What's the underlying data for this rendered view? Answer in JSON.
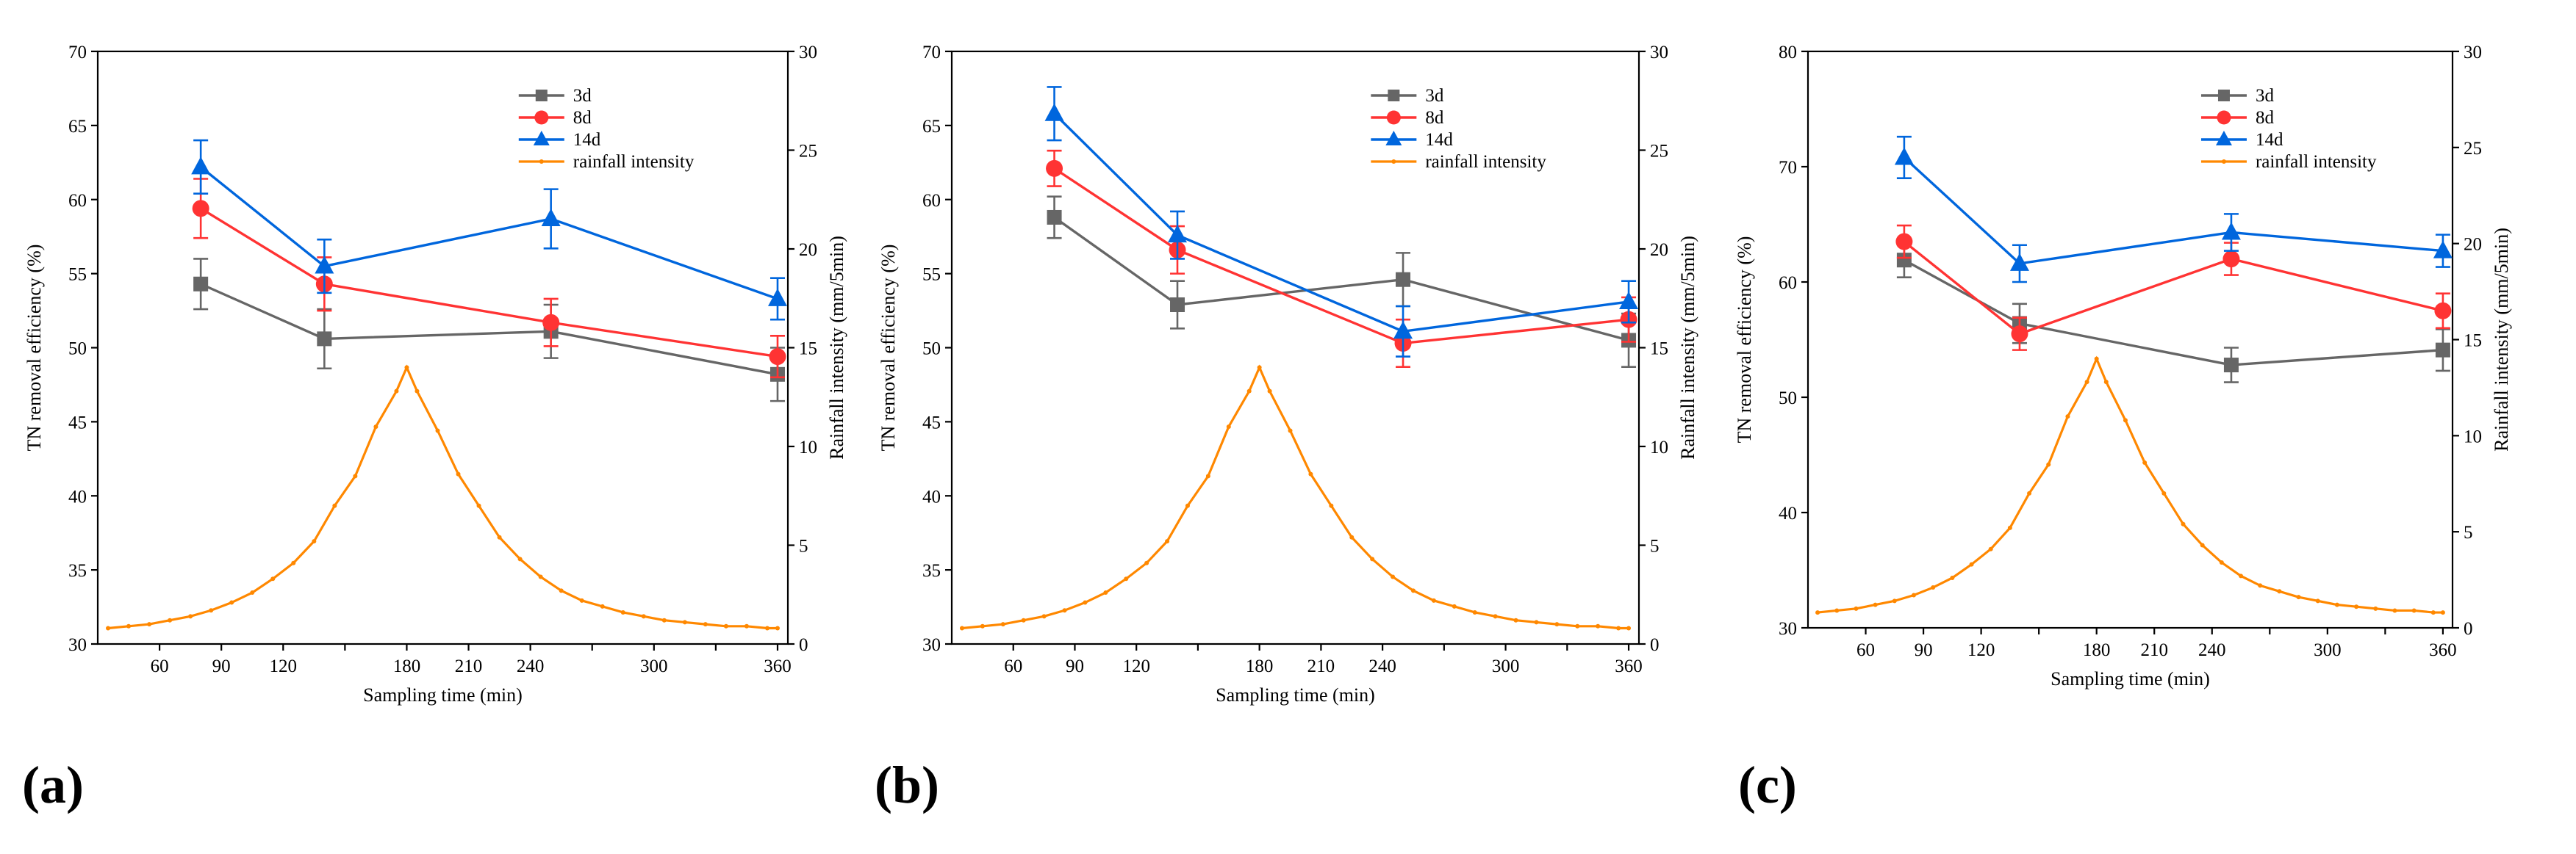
{
  "chart_data": [
    {
      "type": "line",
      "panel_label": "(a)",
      "xlabel": "Sampling time (min)",
      "ylabel": "TN removal efficiency (%)",
      "y2label": "Rainfall intensity (mm/5min)",
      "xlim": [
        30,
        365
      ],
      "ylim": [
        30,
        70
      ],
      "y2lim": [
        0,
        30
      ],
      "xticks": [
        60,
        90,
        120,
        150,
        180,
        210,
        240,
        270,
        300,
        330,
        360
      ],
      "xtick_labels": [
        "60",
        "90",
        "120",
        "",
        "180",
        "210",
        "240",
        "",
        "300",
        "",
        "360"
      ],
      "yticks": [
        30,
        35,
        40,
        45,
        50,
        55,
        60,
        65,
        70
      ],
      "y2ticks": [
        0,
        5,
        10,
        15,
        20,
        25,
        30
      ],
      "legend_position": "top-right",
      "series": [
        {
          "name": "3d",
          "color": "#666666",
          "marker": "square",
          "x": [
            80,
            140,
            250,
            360
          ],
          "y": [
            54.3,
            50.6,
            51.1,
            48.2
          ],
          "err": [
            1.7,
            2.0,
            1.8,
            1.8
          ]
        },
        {
          "name": "8d",
          "color": "#ff3333",
          "marker": "circle",
          "x": [
            80,
            140,
            250,
            360
          ],
          "y": [
            59.4,
            54.3,
            51.7,
            49.4
          ],
          "err": [
            2.0,
            1.8,
            1.6,
            1.4
          ]
        },
        {
          "name": "14d",
          "color": "#0066dd",
          "marker": "triangle",
          "x": [
            80,
            140,
            250,
            360
          ],
          "y": [
            62.2,
            55.5,
            58.7,
            53.3
          ],
          "err": [
            1.8,
            1.8,
            2.0,
            1.4
          ]
        }
      ],
      "rainfall": {
        "name": "rainfall intensity",
        "color": "#ff8800",
        "x": [
          35,
          45,
          55,
          65,
          75,
          85,
          95,
          105,
          115,
          125,
          135,
          145,
          155,
          165,
          175,
          180,
          185,
          195,
          205,
          215,
          225,
          235,
          245,
          255,
          265,
          275,
          285,
          295,
          305,
          315,
          325,
          335,
          345,
          355,
          360
        ],
        "y": [
          0.8,
          0.9,
          1.0,
          1.2,
          1.4,
          1.7,
          2.1,
          2.6,
          3.3,
          4.1,
          5.2,
          7.0,
          8.5,
          11.0,
          12.8,
          14.0,
          12.8,
          10.8,
          8.6,
          7.0,
          5.4,
          4.3,
          3.4,
          2.7,
          2.2,
          1.9,
          1.6,
          1.4,
          1.2,
          1.1,
          1.0,
          0.9,
          0.9,
          0.8,
          0.8
        ]
      }
    },
    {
      "type": "line",
      "panel_label": "(b)",
      "xlabel": "Sampling time (min)",
      "ylabel": "TN removal efficiency (%)",
      "y2label": "Rainfall intensity (mm/5min)",
      "xlim": [
        30,
        365
      ],
      "ylim": [
        30,
        70
      ],
      "y2lim": [
        0,
        30
      ],
      "xticks": [
        60,
        90,
        120,
        150,
        180,
        210,
        240,
        270,
        300,
        330,
        360
      ],
      "xtick_labels": [
        "60",
        "90",
        "120",
        "",
        "180",
        "210",
        "240",
        "",
        "300",
        "",
        "360"
      ],
      "yticks": [
        30,
        35,
        40,
        45,
        50,
        55,
        60,
        65,
        70
      ],
      "y2ticks": [
        0,
        5,
        10,
        15,
        20,
        25,
        30
      ],
      "legend_position": "top-right",
      "series": [
        {
          "name": "3d",
          "color": "#666666",
          "marker": "square",
          "x": [
            80,
            140,
            250,
            360
          ],
          "y": [
            58.8,
            52.9,
            54.6,
            50.5
          ],
          "err": [
            1.4,
            1.6,
            1.8,
            1.8
          ]
        },
        {
          "name": "8d",
          "color": "#ff3333",
          "marker": "circle",
          "x": [
            80,
            140,
            250,
            360
          ],
          "y": [
            62.1,
            56.6,
            50.3,
            51.9
          ],
          "err": [
            1.2,
            1.6,
            1.6,
            1.5
          ]
        },
        {
          "name": "14d",
          "color": "#0066dd",
          "marker": "triangle",
          "x": [
            80,
            140,
            250,
            360
          ],
          "y": [
            65.8,
            57.6,
            51.1,
            53.1
          ],
          "err": [
            1.8,
            1.6,
            1.7,
            1.4
          ]
        }
      ],
      "rainfall": {
        "name": "rainfall intensity",
        "color": "#ff8800",
        "x": [
          35,
          45,
          55,
          65,
          75,
          85,
          95,
          105,
          115,
          125,
          135,
          145,
          155,
          165,
          175,
          180,
          185,
          195,
          205,
          215,
          225,
          235,
          245,
          255,
          265,
          275,
          285,
          295,
          305,
          315,
          325,
          335,
          345,
          355,
          360
        ],
        "y": [
          0.8,
          0.9,
          1.0,
          1.2,
          1.4,
          1.7,
          2.1,
          2.6,
          3.3,
          4.1,
          5.2,
          7.0,
          8.5,
          11.0,
          12.8,
          14.0,
          12.8,
          10.8,
          8.6,
          7.0,
          5.4,
          4.3,
          3.4,
          2.7,
          2.2,
          1.9,
          1.6,
          1.4,
          1.2,
          1.1,
          1.0,
          0.9,
          0.9,
          0.8,
          0.8
        ]
      }
    },
    {
      "type": "line",
      "panel_label": "(c)",
      "xlabel": "Sampling time (min)",
      "ylabel": "TN removal efficiency (%)",
      "y2label": "Rainfall intensity (mm/5min)",
      "xlim": [
        30,
        365
      ],
      "ylim": [
        30,
        80
      ],
      "y2lim": [
        0,
        30
      ],
      "xticks": [
        60,
        90,
        120,
        150,
        180,
        210,
        240,
        270,
        300,
        330,
        360
      ],
      "xtick_labels": [
        "60",
        "90",
        "120",
        "",
        "180",
        "210",
        "240",
        "",
        "300",
        "",
        "360"
      ],
      "yticks": [
        30,
        40,
        50,
        60,
        70,
        80
      ],
      "y2ticks": [
        0,
        5,
        10,
        15,
        20,
        25,
        30
      ],
      "legend_position": "top-right",
      "series": [
        {
          "name": "3d",
          "color": "#666666",
          "marker": "square",
          "x": [
            80,
            140,
            250,
            360
          ],
          "y": [
            61.9,
            56.4,
            52.8,
            54.1
          ],
          "err": [
            1.5,
            1.7,
            1.5,
            1.8
          ]
        },
        {
          "name": "8d",
          "color": "#ff3333",
          "marker": "circle",
          "x": [
            80,
            140,
            250,
            360
          ],
          "y": [
            63.5,
            55.5,
            62.0,
            57.5
          ],
          "err": [
            1.4,
            1.4,
            1.4,
            1.5
          ]
        },
        {
          "name": "14d",
          "color": "#0066dd",
          "marker": "triangle",
          "x": [
            80,
            140,
            250,
            360
          ],
          "y": [
            70.8,
            61.6,
            64.3,
            62.7
          ],
          "err": [
            1.8,
            1.6,
            1.6,
            1.4
          ]
        }
      ],
      "rainfall": {
        "name": "rainfall intensity",
        "color": "#ff8800",
        "x": [
          35,
          45,
          55,
          65,
          75,
          85,
          95,
          105,
          115,
          125,
          135,
          145,
          155,
          165,
          175,
          180,
          185,
          195,
          205,
          215,
          225,
          235,
          245,
          255,
          265,
          275,
          285,
          295,
          305,
          315,
          325,
          335,
          345,
          355,
          360
        ],
        "y": [
          0.8,
          0.9,
          1.0,
          1.2,
          1.4,
          1.7,
          2.1,
          2.6,
          3.3,
          4.1,
          5.2,
          7.0,
          8.5,
          11.0,
          12.8,
          14.0,
          12.8,
          10.8,
          8.6,
          7.0,
          5.4,
          4.3,
          3.4,
          2.7,
          2.2,
          1.9,
          1.6,
          1.4,
          1.2,
          1.1,
          1.0,
          0.9,
          0.9,
          0.8,
          0.8
        ]
      }
    }
  ]
}
